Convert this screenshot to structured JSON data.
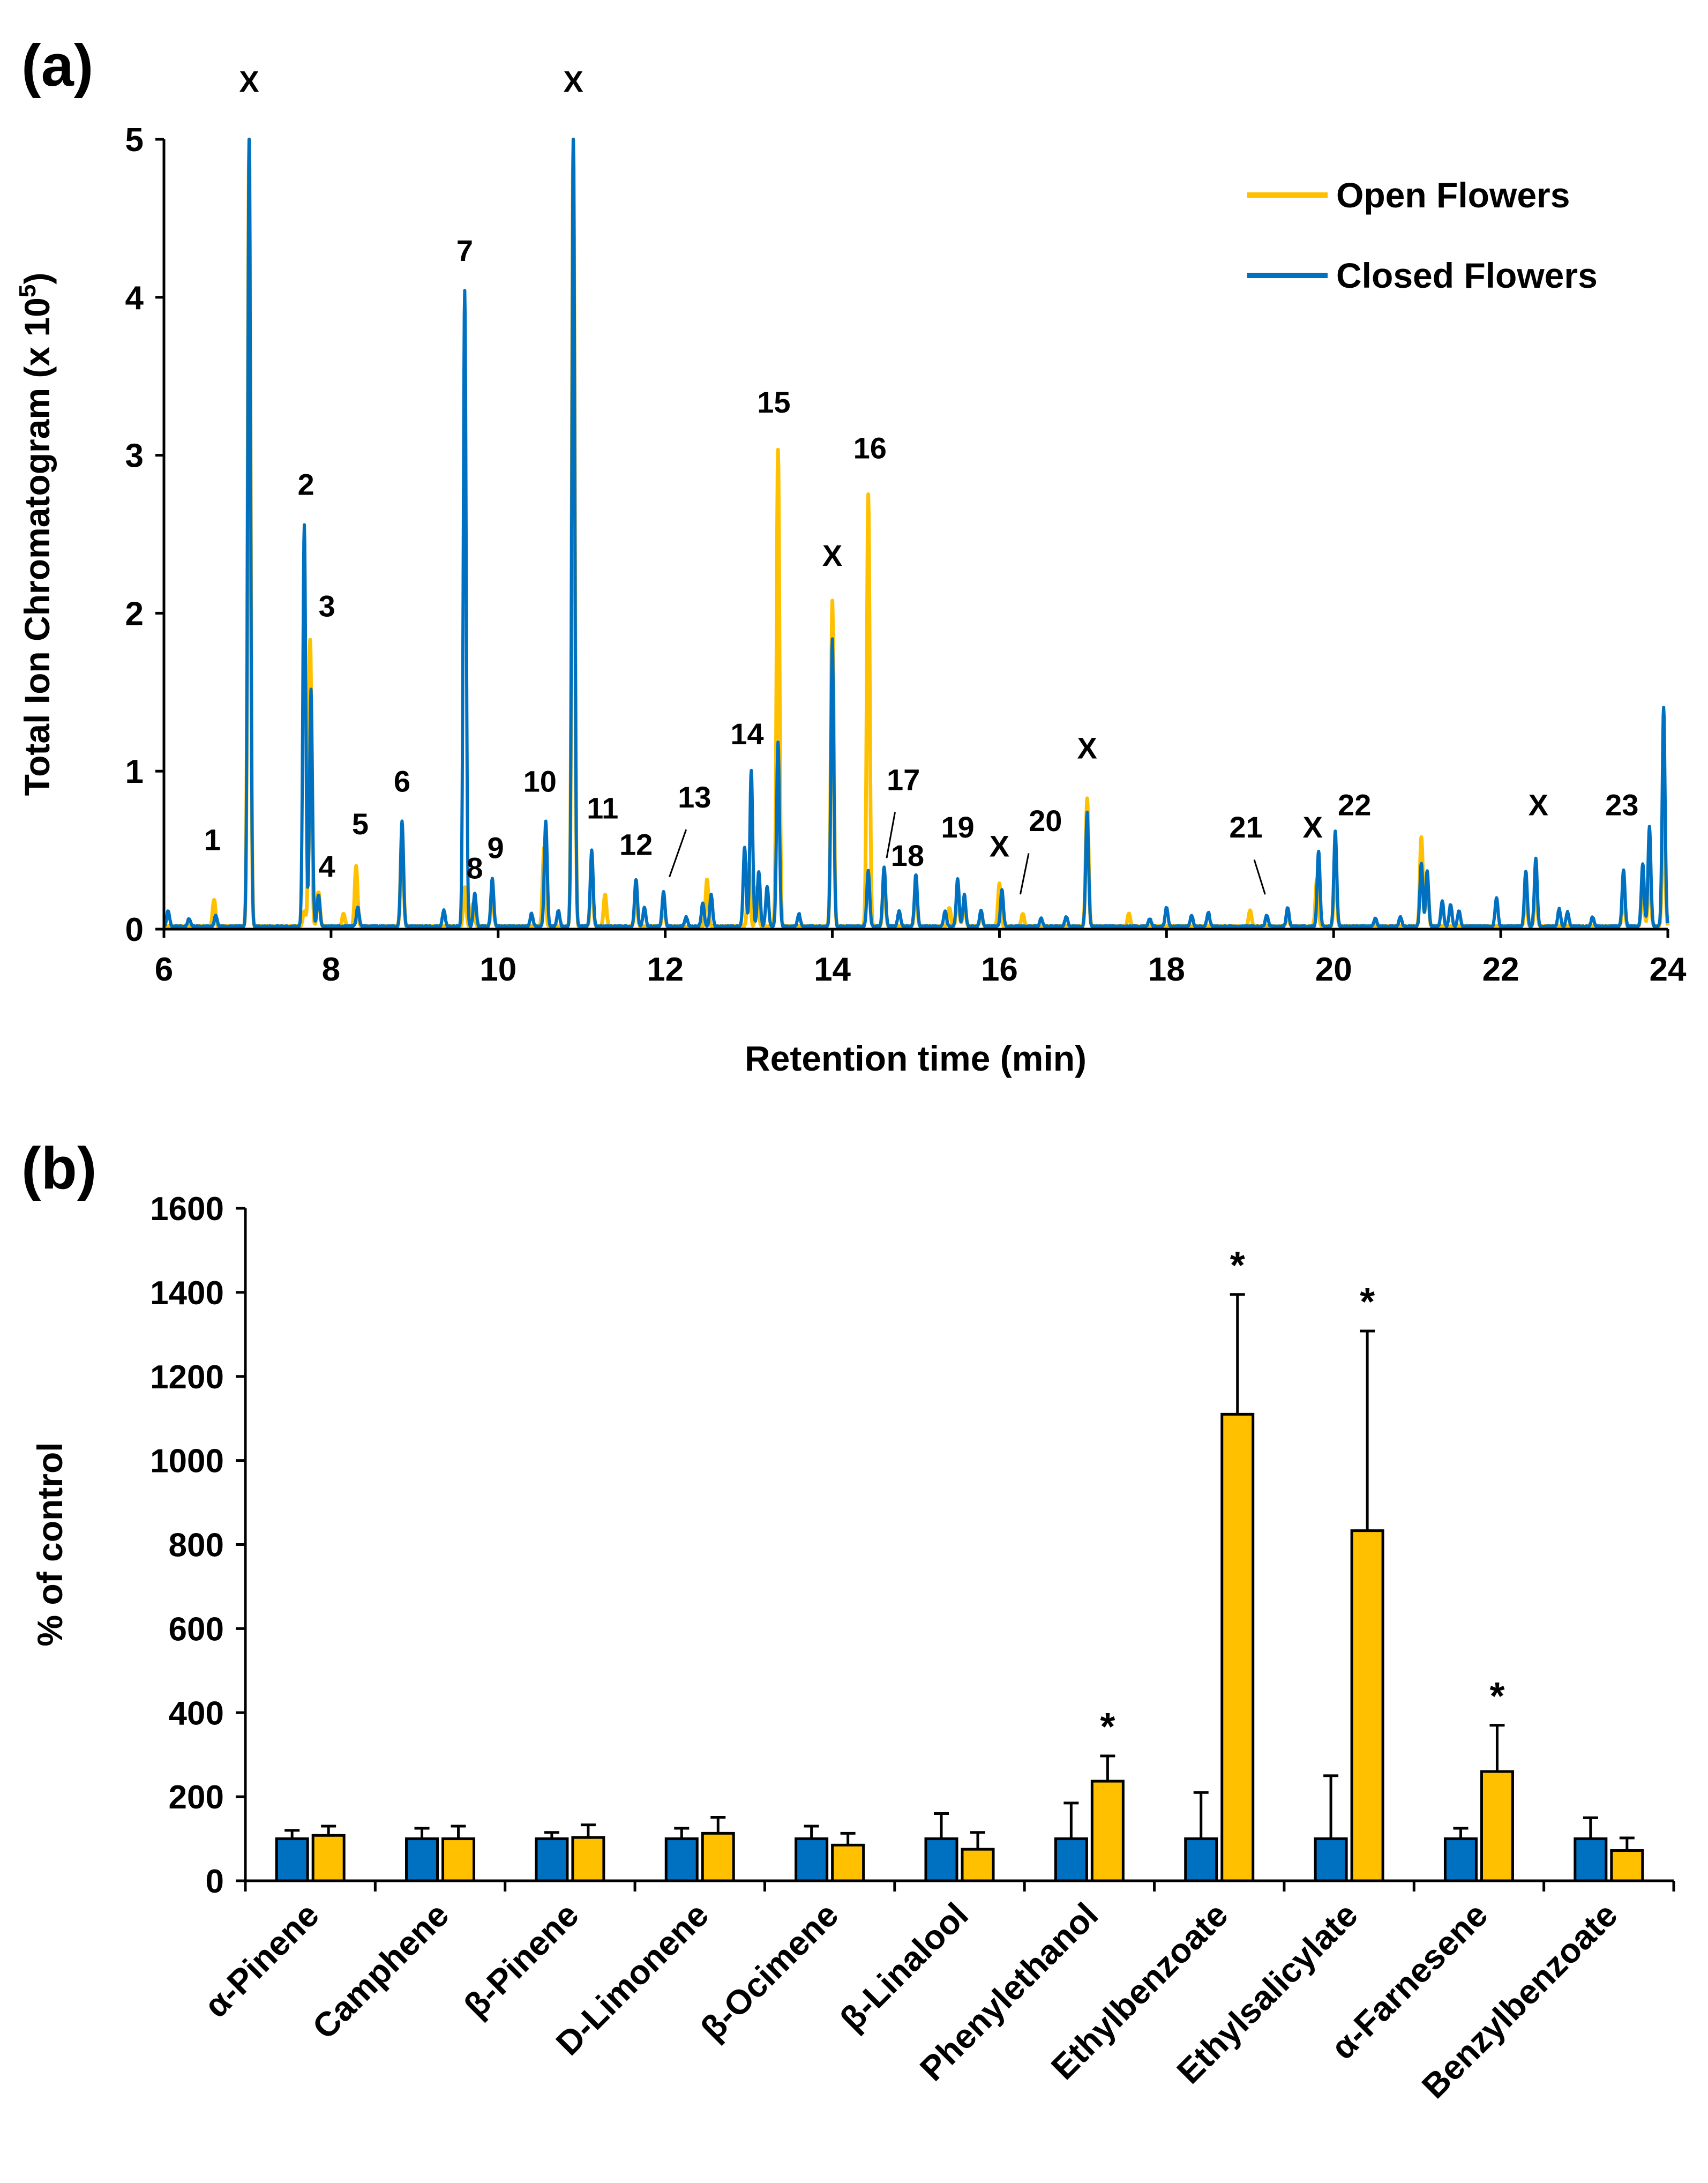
{
  "chart_data": [
    {
      "type": "line",
      "panel_label": "(a)",
      "xlabel": "Retention time (min)",
      "ylabel_main": "Total Ion Chromatogram (x 10",
      "ylabel_sup": "5",
      "ylabel_end": ")",
      "xlim": [
        6,
        24
      ],
      "ylim": [
        0,
        5
      ],
      "x_ticks": [
        "6",
        "8",
        "10",
        "12",
        "14",
        "16",
        "18",
        "20",
        "22",
        "24"
      ],
      "y_ticks": [
        "0",
        "1",
        "2",
        "3",
        "4",
        "5"
      ],
      "legend": {
        "position": "top-right",
        "open": "Open Flowers",
        "closed": "Closed Flowers"
      },
      "colors": {
        "open": "#FFC000",
        "closed": "#0070C0"
      },
      "series": [
        {
          "name": "Open Flowers",
          "peaks": [
            {
              "x": 6.6,
              "y": 0.17
            },
            {
              "x": 7.02,
              "y": 5.0
            },
            {
              "x": 7.68,
              "y": 0.1
            },
            {
              "x": 7.75,
              "y": 1.82
            },
            {
              "x": 7.85,
              "y": 0.22
            },
            {
              "x": 8.15,
              "y": 0.08
            },
            {
              "x": 8.3,
              "y": 0.38
            },
            {
              "x": 8.85,
              "y": 0.6
            },
            {
              "x": 9.6,
              "y": 0.25
            },
            {
              "x": 9.7,
              "y": 0.15
            },
            {
              "x": 9.93,
              "y": 0.2
            },
            {
              "x": 10.55,
              "y": 0.5
            },
            {
              "x": 10.9,
              "y": 5.0
            },
            {
              "x": 11.12,
              "y": 0.35
            },
            {
              "x": 11.28,
              "y": 0.2
            },
            {
              "x": 11.65,
              "y": 0.2
            },
            {
              "x": 11.98,
              "y": 0.15
            },
            {
              "x": 12.5,
              "y": 0.3
            },
            {
              "x": 13.0,
              "y": 0.4
            },
            {
              "x": 13.1,
              "y": 0.25
            },
            {
              "x": 13.35,
              "y": 3.02
            },
            {
              "x": 14.0,
              "y": 2.06
            },
            {
              "x": 14.43,
              "y": 2.74
            },
            {
              "x": 14.62,
              "y": 0.3
            },
            {
              "x": 15.0,
              "y": 0.25
            },
            {
              "x": 15.4,
              "y": 0.12
            },
            {
              "x": 15.5,
              "y": 0.22
            },
            {
              "x": 15.58,
              "y": 0.15
            },
            {
              "x": 15.78,
              "y": 0.08
            },
            {
              "x": 16.0,
              "y": 0.27
            },
            {
              "x": 16.28,
              "y": 0.08
            },
            {
              "x": 17.05,
              "y": 0.81
            },
            {
              "x": 17.55,
              "y": 0.08
            },
            {
              "x": 19.0,
              "y": 0.1
            },
            {
              "x": 19.45,
              "y": 0.08
            },
            {
              "x": 19.8,
              "y": 0.3
            },
            {
              "x": 20.02,
              "y": 0.4
            },
            {
              "x": 21.05,
              "y": 0.57
            },
            {
              "x": 21.12,
              "y": 0.3
            },
            {
              "x": 22.3,
              "y": 0.2
            },
            {
              "x": 22.42,
              "y": 0.25
            },
            {
              "x": 23.47,
              "y": 0.2
            },
            {
              "x": 23.7,
              "y": 0.25
            },
            {
              "x": 23.78,
              "y": 0.35
            },
            {
              "x": 23.95,
              "y": 0.8
            }
          ]
        },
        {
          "name": "Closed Flowers",
          "peaks": [
            {
              "x": 6.05,
              "y": 0.1
            },
            {
              "x": 6.3,
              "y": 0.05
            },
            {
              "x": 6.62,
              "y": 0.07
            },
            {
              "x": 7.02,
              "y": 5.0
            },
            {
              "x": 7.68,
              "y": 2.54
            },
            {
              "x": 7.76,
              "y": 1.5
            },
            {
              "x": 7.85,
              "y": 0.2
            },
            {
              "x": 8.32,
              "y": 0.12
            },
            {
              "x": 8.85,
              "y": 0.67
            },
            {
              "x": 9.35,
              "y": 0.1
            },
            {
              "x": 9.6,
              "y": 4.03
            },
            {
              "x": 9.72,
              "y": 0.21
            },
            {
              "x": 9.93,
              "y": 0.3
            },
            {
              "x": 10.4,
              "y": 0.08
            },
            {
              "x": 10.57,
              "y": 0.67
            },
            {
              "x": 10.72,
              "y": 0.1
            },
            {
              "x": 10.9,
              "y": 5.0
            },
            {
              "x": 11.12,
              "y": 0.48
            },
            {
              "x": 11.65,
              "y": 0.3
            },
            {
              "x": 11.75,
              "y": 0.12
            },
            {
              "x": 11.98,
              "y": 0.22
            },
            {
              "x": 12.25,
              "y": 0.06
            },
            {
              "x": 12.45,
              "y": 0.15
            },
            {
              "x": 12.55,
              "y": 0.2
            },
            {
              "x": 12.95,
              "y": 0.5
            },
            {
              "x": 13.03,
              "y": 0.99
            },
            {
              "x": 13.12,
              "y": 0.35
            },
            {
              "x": 13.22,
              "y": 0.25
            },
            {
              "x": 13.35,
              "y": 1.17
            },
            {
              "x": 13.6,
              "y": 0.08
            },
            {
              "x": 14.0,
              "y": 1.82
            },
            {
              "x": 14.43,
              "y": 0.35
            },
            {
              "x": 14.62,
              "y": 0.38
            },
            {
              "x": 14.8,
              "y": 0.1
            },
            {
              "x": 15.0,
              "y": 0.33
            },
            {
              "x": 15.35,
              "y": 0.1
            },
            {
              "x": 15.5,
              "y": 0.3
            },
            {
              "x": 15.58,
              "y": 0.2
            },
            {
              "x": 15.78,
              "y": 0.1
            },
            {
              "x": 16.03,
              "y": 0.23
            },
            {
              "x": 16.5,
              "y": 0.05
            },
            {
              "x": 16.8,
              "y": 0.06
            },
            {
              "x": 17.05,
              "y": 0.72
            },
            {
              "x": 17.8,
              "y": 0.05
            },
            {
              "x": 18.0,
              "y": 0.12
            },
            {
              "x": 18.3,
              "y": 0.07
            },
            {
              "x": 18.5,
              "y": 0.09
            },
            {
              "x": 19.2,
              "y": 0.07
            },
            {
              "x": 19.45,
              "y": 0.12
            },
            {
              "x": 19.82,
              "y": 0.48
            },
            {
              "x": 20.02,
              "y": 0.6
            },
            {
              "x": 20.5,
              "y": 0.05
            },
            {
              "x": 20.8,
              "y": 0.06
            },
            {
              "x": 21.05,
              "y": 0.4
            },
            {
              "x": 21.12,
              "y": 0.35
            },
            {
              "x": 21.3,
              "y": 0.16
            },
            {
              "x": 21.4,
              "y": 0.14
            },
            {
              "x": 21.5,
              "y": 0.1
            },
            {
              "x": 21.95,
              "y": 0.18
            },
            {
              "x": 22.3,
              "y": 0.35
            },
            {
              "x": 22.42,
              "y": 0.43
            },
            {
              "x": 22.7,
              "y": 0.11
            },
            {
              "x": 22.8,
              "y": 0.09
            },
            {
              "x": 23.1,
              "y": 0.06
            },
            {
              "x": 23.47,
              "y": 0.36
            },
            {
              "x": 23.7,
              "y": 0.4
            },
            {
              "x": 23.78,
              "y": 0.63
            },
            {
              "x": 23.95,
              "y": 1.39
            }
          ]
        }
      ],
      "peak_labels": [
        {
          "text": "1",
          "x": 6.58,
          "y": 0.5
        },
        {
          "text": "X",
          "x": 7.02,
          "y": 5.3
        },
        {
          "text": "2",
          "x": 7.7,
          "y": 2.75
        },
        {
          "text": "3",
          "x": 7.95,
          "y": 1.98
        },
        {
          "text": "4",
          "x": 7.95,
          "y": 0.33
        },
        {
          "text": "5",
          "x": 8.35,
          "y": 0.6
        },
        {
          "text": "6",
          "x": 8.85,
          "y": 0.87
        },
        {
          "text": "7",
          "x": 9.6,
          "y": 4.23
        },
        {
          "text": "8",
          "x": 9.72,
          "y": 0.32
        },
        {
          "text": "9",
          "x": 9.97,
          "y": 0.45
        },
        {
          "text": "10",
          "x": 10.5,
          "y": 0.87
        },
        {
          "text": "X",
          "x": 10.9,
          "y": 5.3
        },
        {
          "text": "11",
          "x": 11.25,
          "y": 0.7
        },
        {
          "text": "12",
          "x": 11.65,
          "y": 0.47
        },
        {
          "text": "13",
          "x": 12.35,
          "y": 0.77
        },
        {
          "text": "14",
          "x": 12.98,
          "y": 1.17
        },
        {
          "text": "15",
          "x": 13.3,
          "y": 3.27
        },
        {
          "text": "X",
          "x": 14.0,
          "y": 2.3
        },
        {
          "text": "16",
          "x": 14.45,
          "y": 2.98
        },
        {
          "text": "17",
          "x": 14.85,
          "y": 0.88
        },
        {
          "text": "18",
          "x": 14.9,
          "y": 0.4
        },
        {
          "text": "19",
          "x": 15.5,
          "y": 0.58
        },
        {
          "text": "X",
          "x": 16.0,
          "y": 0.46
        },
        {
          "text": "20",
          "x": 16.55,
          "y": 0.62
        },
        {
          "text": "X",
          "x": 17.05,
          "y": 1.08
        },
        {
          "text": "21",
          "x": 18.95,
          "y": 0.58
        },
        {
          "text": "X",
          "x": 19.75,
          "y": 0.58
        },
        {
          "text": "22",
          "x": 20.25,
          "y": 0.72
        },
        {
          "text": "X",
          "x": 22.45,
          "y": 0.72
        },
        {
          "text": "23",
          "x": 23.45,
          "y": 0.72
        }
      ],
      "leader_lines": [
        {
          "from": [
            12.25,
            0.63
          ],
          "to": [
            12.05,
            0.33
          ]
        },
        {
          "from": [
            14.75,
            0.74
          ],
          "to": [
            14.65,
            0.45
          ]
        },
        {
          "from": [
            16.35,
            0.48
          ],
          "to": [
            16.25,
            0.22
          ]
        },
        {
          "from": [
            19.05,
            0.44
          ],
          "to": [
            19.18,
            0.22
          ]
        }
      ]
    },
    {
      "type": "bar",
      "panel_label": "(b)",
      "title": "",
      "xlabel": "",
      "ylabel": "% of control",
      "ylim": [
        0,
        1600
      ],
      "y_ticks": [
        "0",
        "200",
        "400",
        "600",
        "800",
        "1000",
        "1200",
        "1400",
        "1600"
      ],
      "categories": [
        "α-Pinene",
        "Camphene",
        "β-Pinene",
        "D-Limonene",
        "β-Ocimene",
        "β-Linalool",
        "Phenylethanol",
        "Ethylbenzoate",
        "Ethylsalicylate",
        "α-Farnesene",
        "Benzylbenzoate"
      ],
      "colors": {
        "closed": "#0070C0",
        "open": "#FFC000"
      },
      "series": [
        {
          "name": "Closed Flowers",
          "values": [
            100,
            100,
            100,
            100,
            100,
            100,
            100,
            100,
            100,
            100,
            100
          ],
          "errors": [
            20,
            25,
            15,
            25,
            30,
            60,
            85,
            110,
            150,
            25,
            50
          ]
        },
        {
          "name": "Open Flowers",
          "values": [
            108,
            100,
            103,
            113,
            85,
            75,
            237,
            1110,
            833,
            260,
            72
          ],
          "errors": [
            22,
            30,
            30,
            38,
            28,
            40,
            60,
            285,
            475,
            110,
            30
          ]
        }
      ],
      "significance": [
        "",
        "",
        "",
        "",
        "",
        "",
        "*",
        "*",
        "*",
        "*",
        ""
      ]
    }
  ]
}
